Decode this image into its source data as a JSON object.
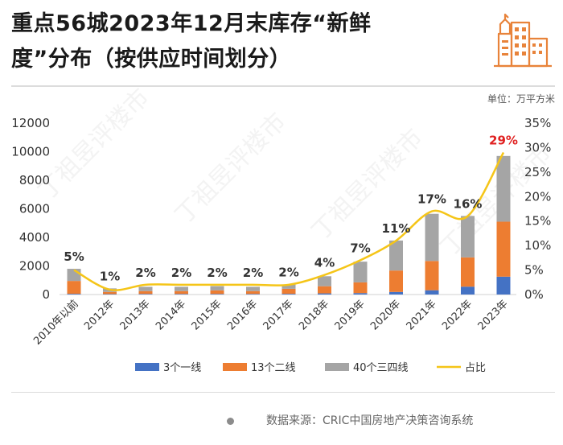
{
  "title": {
    "line1": "重点56城2023年12月末库存“新鲜",
    "line2": "度”分布（按供应时间划分）"
  },
  "unit": "单位：万平方米",
  "source": "数据来源：CRIC中国房地产决策咨询系统",
  "colors": {
    "tier1": "#4472C4",
    "tier2": "#ED7D31",
    "tier34": "#A5A5A5",
    "share_line": "#F5C518",
    "highlight_label": "#E02020",
    "logo": "#E8833A"
  },
  "icons": {
    "logo": "building-icon",
    "source_bullet": "dot-icon"
  },
  "chart_data": {
    "type": "bar",
    "stacked": true,
    "categories": [
      "2010年以前",
      "2012年",
      "2013年",
      "2014年",
      "2015年",
      "2016年",
      "2017年",
      "2018年",
      "2019年",
      "2020年",
      "2021年",
      "2022年",
      "2023年"
    ],
    "series": [
      {
        "name": "3个一线",
        "type": "bar",
        "color": "#4472C4",
        "values": [
          50,
          30,
          40,
          40,
          40,
          40,
          50,
          80,
          100,
          180,
          300,
          550,
          1250
        ]
      },
      {
        "name": "13个二线",
        "type": "bar",
        "color": "#ED7D31",
        "values": [
          900,
          150,
          200,
          200,
          250,
          200,
          350,
          500,
          750,
          1500,
          2050,
          2050,
          3850
        ]
      },
      {
        "name": "40个三四线",
        "type": "bar",
        "color": "#A5A5A5",
        "values": [
          850,
          250,
          300,
          300,
          300,
          300,
          300,
          700,
          1450,
          2100,
          3300,
          2900,
          4600
        ]
      },
      {
        "name": "占比",
        "type": "line",
        "axis": "right",
        "color": "#F5C518",
        "values": [
          5,
          1,
          2,
          2,
          2,
          2,
          2,
          4,
          7,
          11,
          17,
          16,
          29
        ]
      }
    ],
    "data_labels": [
      "5%",
      "1%",
      "2%",
      "2%",
      "2%",
      "2%",
      "2%",
      "4%",
      "7%",
      "11%",
      "17%",
      "16%",
      "29%"
    ],
    "highlight_index": 12,
    "y_left": {
      "min": 0,
      "max": 12000,
      "ticks": [
        0,
        2000,
        4000,
        6000,
        8000,
        10000,
        12000
      ]
    },
    "y_right": {
      "min": 0,
      "max": 35,
      "ticks": [
        "0%",
        "5%",
        "10%",
        "15%",
        "20%",
        "25%",
        "30%",
        "35%"
      ]
    },
    "legend": [
      "3个一线",
      "13个二线",
      "40个三四线",
      "占比"
    ],
    "legend_position": "bottom"
  }
}
